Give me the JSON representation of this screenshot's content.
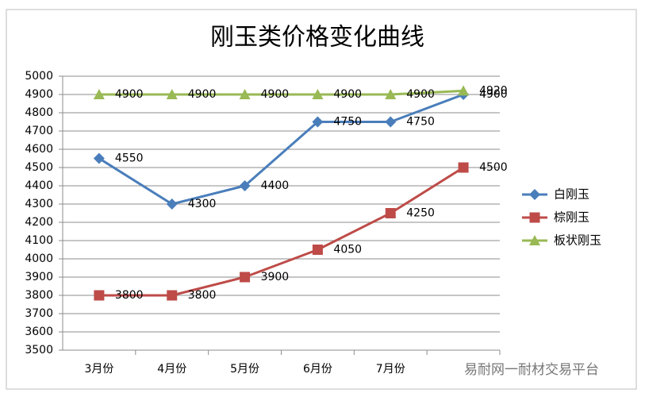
{
  "chart_data": {
    "type": "line",
    "title": "刚玉类价格变化曲线",
    "categories": [
      "3月份",
      "4月份",
      "5月份",
      "6月份",
      "7月份",
      null
    ],
    "series": [
      {
        "name": "白刚玉",
        "color": "#4a7ebb",
        "marker": "diamond",
        "values": [
          4550,
          4300,
          4400,
          4750,
          4750,
          4900
        ]
      },
      {
        "name": "棕刚玉",
        "color": "#be4b48",
        "marker": "square",
        "values": [
          3800,
          3800,
          3900,
          4050,
          4250,
          4500
        ]
      },
      {
        "name": "板状刚玉",
        "color": "#98b954",
        "marker": "triangle",
        "values": [
          4900,
          4900,
          4900,
          4900,
          4900,
          4920
        ]
      }
    ],
    "ylim": [
      3500,
      5000
    ],
    "yticks": [
      3500,
      3600,
      3700,
      3800,
      3900,
      4000,
      4100,
      4200,
      4300,
      4400,
      4500,
      4600,
      4700,
      4800,
      4900,
      5000
    ],
    "grid": true,
    "legend": "right",
    "watermark": "易耐网一耐材交易平台"
  }
}
